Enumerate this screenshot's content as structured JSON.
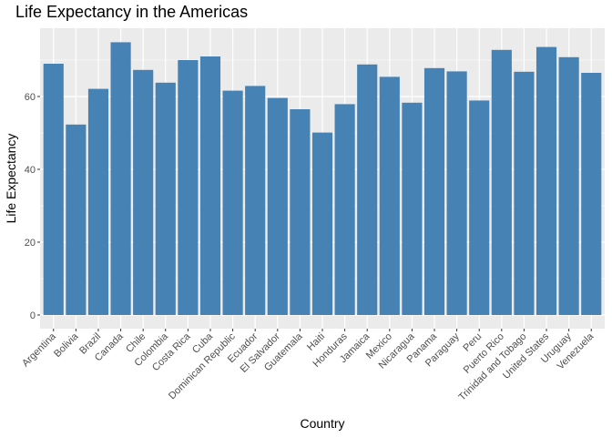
{
  "chart_data": {
    "type": "bar",
    "title": "Life Expectancy in the Americas",
    "xlabel": "Country",
    "ylabel": "Life Expectancy",
    "ylim": [
      0,
      77.6
    ],
    "yticks": [
      0,
      20,
      40,
      60
    ],
    "grid": true,
    "bar_color": "#4682b4",
    "panel_color": "#ebebeb",
    "categories": [
      "Argentina",
      "Bolivia",
      "Brazil",
      "Canada",
      "Chile",
      "Colombia",
      "Costa Rica",
      "Cuba",
      "Dominican Republic",
      "Ecuador",
      "El Salvador",
      "Guatemala",
      "Haiti",
      "Honduras",
      "Jamaica",
      "Mexico",
      "Nicaragua",
      "Panama",
      "Paraguay",
      "Peru",
      "Puerto Rico",
      "Trinidad and Tobago",
      "United States",
      "Uruguay",
      "Venezuela"
    ],
    "values": [
      69.0,
      52.3,
      62.1,
      74.9,
      67.3,
      63.8,
      70.0,
      71.0,
      61.6,
      62.9,
      59.6,
      56.5,
      50.1,
      57.9,
      68.8,
      65.4,
      58.3,
      67.8,
      66.9,
      58.9,
      72.8,
      66.8,
      73.6,
      70.8,
      66.5
    ]
  }
}
